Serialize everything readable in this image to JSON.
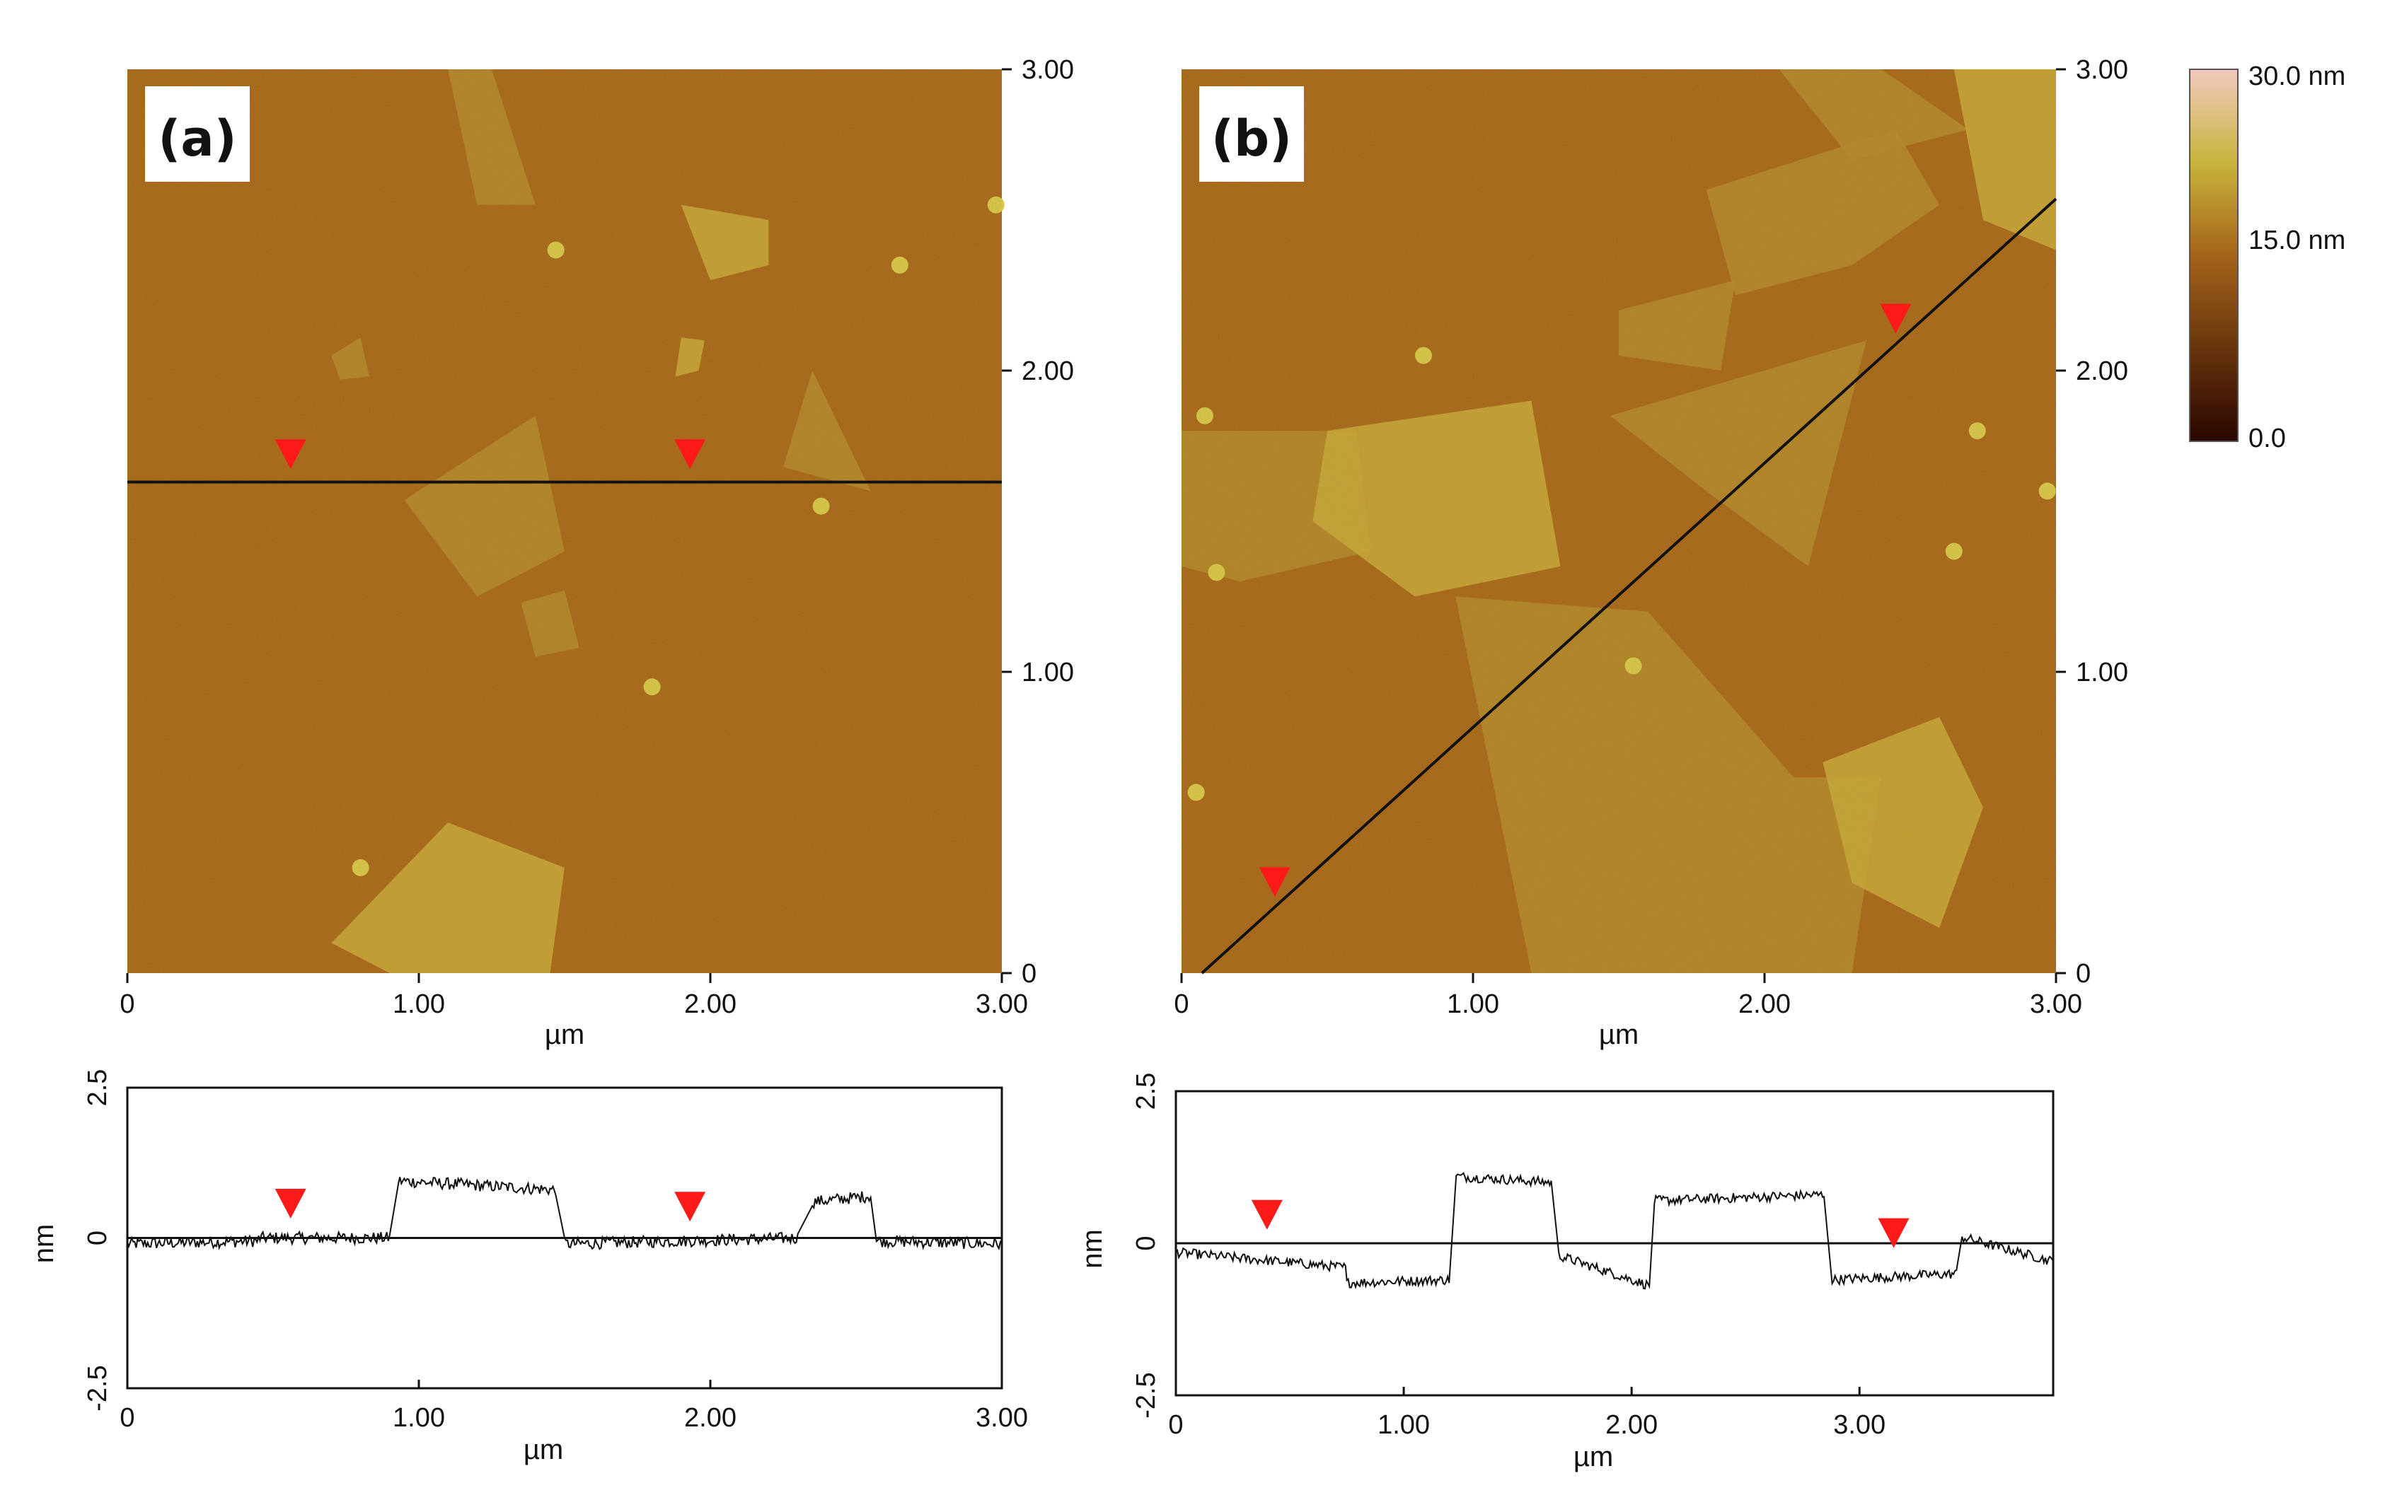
{
  "colors": {
    "substrate": "#a7671a",
    "flake": "#b38a2c",
    "flake_bright": "#c8aa3a",
    "particle": "#d6c84a",
    "profile_line": "#111111",
    "marker": "#ff1a1a",
    "colorbar_low": "#2a0600",
    "colorbar_mid": "#a5641a",
    "colorbar_high": "#f2c9c0"
  },
  "colorbar": {
    "labels": [
      "30.0 nm",
      "15.0 nm",
      "0.0"
    ],
    "values": [
      30.0,
      15.0,
      0.0
    ],
    "unit": "nm"
  },
  "chart_data": [
    {
      "type": "heatmap",
      "panel_label": "(a)",
      "title": "",
      "xlabel": "µm",
      "ylabel": "",
      "xlim": [
        0,
        3.0
      ],
      "ylim": [
        0,
        3.0
      ],
      "x_ticks": [
        "0",
        "1.00",
        "2.00",
        "3.00"
      ],
      "y_ticks": [
        "0",
        "1.00",
        "2.00",
        "3.00"
      ],
      "scan_line": {
        "from": [
          0,
          1.63
        ],
        "to": [
          3.0,
          1.63
        ]
      },
      "markers_xy": [
        [
          0.56,
          1.72
        ],
        [
          1.93,
          1.72
        ]
      ],
      "flakes": [
        [
          [
            1.1,
            3.0
          ],
          [
            1.25,
            3.0
          ],
          [
            1.4,
            2.55
          ],
          [
            1.2,
            2.55
          ]
        ],
        [
          [
            1.9,
            2.55
          ],
          [
            2.2,
            2.5
          ],
          [
            2.2,
            2.35
          ],
          [
            2.0,
            2.3
          ]
        ],
        [
          [
            0.95,
            1.57
          ],
          [
            1.4,
            1.85
          ],
          [
            1.5,
            1.4
          ],
          [
            1.2,
            1.25
          ]
        ],
        [
          [
            2.25,
            1.68
          ],
          [
            2.35,
            2.0
          ],
          [
            2.55,
            1.6
          ]
        ],
        [
          [
            0.7,
            0.1
          ],
          [
            1.1,
            0.5
          ],
          [
            1.5,
            0.35
          ],
          [
            1.45,
            0.0
          ],
          [
            0.9,
            0.0
          ]
        ],
        [
          [
            1.35,
            1.23
          ],
          [
            1.5,
            1.27
          ],
          [
            1.55,
            1.08
          ],
          [
            1.4,
            1.05
          ]
        ],
        [
          [
            0.7,
            2.05
          ],
          [
            0.8,
            2.11
          ],
          [
            0.83,
            1.98
          ],
          [
            0.73,
            1.97
          ]
        ],
        [
          [
            1.9,
            2.11
          ],
          [
            1.98,
            2.1
          ],
          [
            1.96,
            2.0
          ],
          [
            1.88,
            1.98
          ]
        ]
      ],
      "particles": [
        [
          0.8,
          0.35
        ],
        [
          1.8,
          0.95
        ],
        [
          2.65,
          2.35
        ],
        [
          2.38,
          1.55
        ],
        [
          1.47,
          2.4
        ],
        [
          2.98,
          2.55
        ]
      ]
    },
    {
      "type": "heatmap",
      "panel_label": "(b)",
      "title": "",
      "xlabel": "µm",
      "ylabel": "",
      "xlim": [
        0,
        3.0
      ],
      "ylim": [
        0,
        3.0
      ],
      "x_ticks": [
        "0",
        "1.00",
        "2.00",
        "3.00"
      ],
      "y_ticks": [
        "0",
        "1.00",
        "2.00",
        "3.00"
      ],
      "scan_line": {
        "from": [
          0.07,
          0.0
        ],
        "to": [
          3.0,
          2.57
        ]
      },
      "markers_xy": [
        [
          0.32,
          0.3
        ],
        [
          2.45,
          2.17
        ]
      ],
      "flakes": [
        [
          [
            0.0,
            1.8
          ],
          [
            0.6,
            1.8
          ],
          [
            0.65,
            1.4
          ],
          [
            0.2,
            1.3
          ],
          [
            0.0,
            1.35
          ]
        ],
        [
          [
            0.5,
            1.8
          ],
          [
            1.2,
            1.9
          ],
          [
            1.3,
            1.35
          ],
          [
            0.8,
            1.25
          ],
          [
            0.45,
            1.5
          ]
        ],
        [
          [
            1.47,
            1.85
          ],
          [
            2.35,
            2.1
          ],
          [
            2.15,
            1.35
          ],
          [
            1.8,
            1.6
          ]
        ],
        [
          [
            0.94,
            1.25
          ],
          [
            1.6,
            1.2
          ],
          [
            2.1,
            0.65
          ],
          [
            2.4,
            0.65
          ],
          [
            2.3,
            0.0
          ],
          [
            1.2,
            0.0
          ]
        ],
        [
          [
            2.2,
            0.7
          ],
          [
            2.6,
            0.85
          ],
          [
            2.75,
            0.55
          ],
          [
            2.6,
            0.15
          ],
          [
            2.3,
            0.3
          ]
        ],
        [
          [
            1.8,
            2.6
          ],
          [
            2.45,
            2.8
          ],
          [
            2.6,
            2.55
          ],
          [
            2.3,
            2.35
          ],
          [
            1.9,
            2.25
          ]
        ],
        [
          [
            2.05,
            3.0
          ],
          [
            2.4,
            3.0
          ],
          [
            2.7,
            2.8
          ],
          [
            2.3,
            2.7
          ]
        ],
        [
          [
            2.65,
            3.0
          ],
          [
            3.0,
            3.0
          ],
          [
            3.0,
            2.4
          ],
          [
            2.75,
            2.5
          ]
        ],
        [
          [
            1.5,
            2.2
          ],
          [
            1.9,
            2.3
          ],
          [
            1.85,
            2.0
          ],
          [
            1.5,
            2.05
          ]
        ]
      ],
      "particles": [
        [
          0.83,
          2.05
        ],
        [
          1.55,
          1.02
        ],
        [
          0.05,
          0.6
        ],
        [
          2.73,
          1.8
        ],
        [
          0.12,
          1.33
        ],
        [
          0.08,
          1.85
        ],
        [
          2.97,
          1.6
        ],
        [
          2.65,
          1.4
        ]
      ]
    },
    {
      "type": "line",
      "title": "",
      "xlabel": "µm",
      "ylabel": "nm",
      "xlim": [
        0,
        3.0
      ],
      "ylim": [
        -2.5,
        2.5
      ],
      "x_ticks": [
        "0",
        "1.00",
        "2.00",
        "3.00"
      ],
      "y_ticks": [
        "2.5",
        "0",
        "-2.5"
      ],
      "noise": 0.1,
      "segments": [
        {
          "x0": 0.0,
          "x1": 0.45,
          "y0": -0.1,
          "y1": -0.05
        },
        {
          "x0": 0.45,
          "x1": 0.9,
          "y0": 0.0,
          "y1": 0.0
        },
        {
          "x0": 0.93,
          "x1": 1.47,
          "y0": 0.95,
          "y1": 0.8
        },
        {
          "x0": 1.5,
          "x1": 2.3,
          "y0": -0.1,
          "y1": 0.0
        },
        {
          "x0": 2.35,
          "x1": 2.55,
          "y0": 0.6,
          "y1": 0.7
        },
        {
          "x0": 2.57,
          "x1": 3.0,
          "y0": -0.05,
          "y1": -0.1
        }
      ],
      "markers": [
        {
          "x": 0.56,
          "y": 0.3
        },
        {
          "x": 1.93,
          "y": 0.25
        }
      ]
    },
    {
      "type": "line",
      "title": "",
      "xlabel": "µm",
      "ylabel": "nm",
      "xlim": [
        0,
        3.85
      ],
      "ylim": [
        -2.5,
        2.5
      ],
      "x_ticks": [
        "0",
        "1.00",
        "2.00",
        "3.00"
      ],
      "y_ticks": [
        "2.5",
        "0",
        "-2.5"
      ],
      "noise": 0.08,
      "segments": [
        {
          "x0": 0.0,
          "x1": 0.75,
          "y0": -0.15,
          "y1": -0.4
        },
        {
          "x0": 0.75,
          "x1": 1.2,
          "y0": -0.65,
          "y1": -0.6
        },
        {
          "x0": 1.23,
          "x1": 1.65,
          "y0": 1.1,
          "y1": 1.0
        },
        {
          "x0": 1.68,
          "x1": 2.08,
          "y0": -0.2,
          "y1": -0.7
        },
        {
          "x0": 2.1,
          "x1": 2.85,
          "y0": 0.7,
          "y1": 0.8
        },
        {
          "x0": 2.88,
          "x1": 3.43,
          "y0": -0.6,
          "y1": -0.5
        },
        {
          "x0": 3.45,
          "x1": 3.85,
          "y0": 0.1,
          "y1": -0.3
        }
      ],
      "markers": [
        {
          "x": 0.4,
          "y": 0.2
        },
        {
          "x": 3.15,
          "y": -0.1
        }
      ]
    }
  ]
}
